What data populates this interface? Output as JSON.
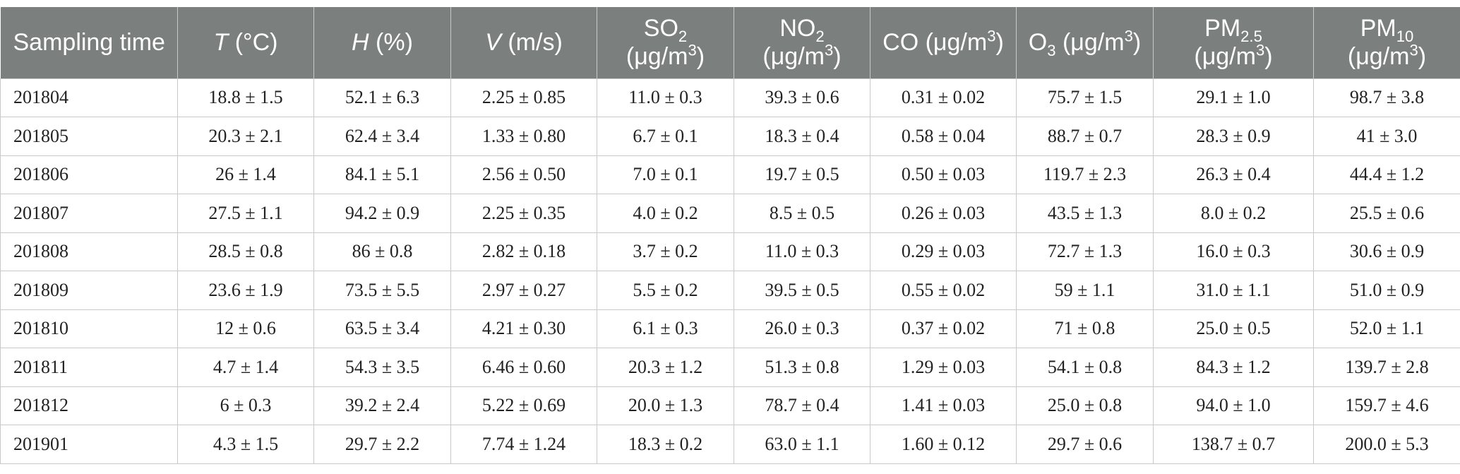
{
  "table": {
    "header": [
      [
        {
          "text": "Sampling time"
        }
      ],
      [
        {
          "i": "T"
        },
        {
          "text": " (°C)"
        }
      ],
      [
        {
          "i": "H"
        },
        {
          "text": " (%)"
        }
      ],
      [
        {
          "i": "V"
        },
        {
          "text": " (m/s)"
        }
      ],
      [
        {
          "text": "SO"
        },
        {
          "sub": "2"
        },
        {
          "text": " (μg/m"
        },
        {
          "sup": "3"
        },
        {
          "text": ")"
        }
      ],
      [
        {
          "text": "NO"
        },
        {
          "sub": "2"
        },
        {
          "text": " (μg/m"
        },
        {
          "sup": "3"
        },
        {
          "text": ")"
        }
      ],
      [
        {
          "text": "CO (μg/m"
        },
        {
          "sup": "3"
        },
        {
          "text": ")"
        }
      ],
      [
        {
          "text": "O"
        },
        {
          "sub": "3"
        },
        {
          "text": " (μg/m"
        },
        {
          "sup": "3"
        },
        {
          "text": ")"
        }
      ],
      [
        {
          "text": "PM"
        },
        {
          "sub": "2.5"
        },
        {
          "text": " (μg/m"
        },
        {
          "sup": "3"
        },
        {
          "text": ")"
        }
      ],
      [
        {
          "text": "PM"
        },
        {
          "sub": "10"
        },
        {
          "text": " (μg/m"
        },
        {
          "sup": "3"
        },
        {
          "text": ")"
        }
      ]
    ],
    "rows": [
      [
        "201804",
        "18.8 ± 1.5",
        "52.1 ± 6.3",
        "2.25 ± 0.85",
        "11.0 ± 0.3",
        "39.3 ± 0.6",
        "0.31 ± 0.02",
        "75.7 ± 1.5",
        "29.1 ± 1.0",
        "98.7 ± 3.8"
      ],
      [
        "201805",
        "20.3 ± 2.1",
        "62.4 ± 3.4",
        "1.33 ± 0.80",
        "6.7 ± 0.1",
        "18.3 ± 0.4",
        "0.58 ± 0.04",
        "88.7 ± 0.7",
        "28.3 ± 0.9",
        "41 ± 3.0"
      ],
      [
        "201806",
        "26 ± 1.4",
        "84.1 ± 5.1",
        "2.56 ± 0.50",
        "7.0 ± 0.1",
        "19.7 ± 0.5",
        "0.50 ± 0.03",
        "119.7 ± 2.3",
        "26.3 ± 0.4",
        "44.4 ± 1.2"
      ],
      [
        "201807",
        "27.5 ± 1.1",
        "94.2 ± 0.9",
        "2.25 ± 0.35",
        "4.0 ± 0.2",
        "8.5 ± 0.5",
        "0.26 ± 0.03",
        "43.5 ± 1.3",
        "8.0 ± 0.2",
        "25.5 ± 0.6"
      ],
      [
        "201808",
        "28.5 ± 0.8",
        "86 ± 0.8",
        "2.82 ± 0.18",
        "3.7 ± 0.2",
        "11.0 ± 0.3",
        "0.29 ± 0.03",
        "72.7 ± 1.3",
        "16.0 ± 0.3",
        "30.6 ± 0.9"
      ],
      [
        "201809",
        "23.6 ± 1.9",
        "73.5 ± 5.5",
        "2.97 ± 0.27",
        "5.5 ± 0.2",
        "39.5 ± 0.5",
        "0.55 ± 0.02",
        "59 ± 1.1",
        "31.0 ± 1.1",
        "51.0 ± 0.9"
      ],
      [
        "201810",
        "12 ± 0.6",
        "63.5 ± 3.4",
        "4.21 ± 0.30",
        "6.1 ± 0.3",
        "26.0 ± 0.3",
        "0.37 ± 0.02",
        "71 ± 0.8",
        "25.0 ± 0.5",
        "52.0 ± 1.1"
      ],
      [
        "201811",
        "4.7 ± 1.4",
        "54.3 ± 3.5",
        "6.46 ± 0.60",
        "20.3 ± 1.2",
        "51.3 ± 0.8",
        "1.29 ± 0.03",
        "54.1 ± 0.8",
        "84.3 ± 1.2",
        "139.7 ± 2.8"
      ],
      [
        "201812",
        "6 ± 0.3",
        "39.2 ± 2.4",
        "5.22 ± 0.69",
        "20.0 ± 1.3",
        "78.7 ± 0.4",
        "1.41 ± 0.03",
        "25.0 ± 0.8",
        "94.0 ± 1.0",
        "159.7 ± 4.6"
      ],
      [
        "201901",
        "4.3 ± 1.5",
        "29.7 ± 2.2",
        "7.74 ± 1.24",
        "18.3 ± 0.2",
        "63.0 ± 1.1",
        "1.60 ± 0.12",
        "29.7 ± 0.6",
        "138.7 ± 0.7",
        "200.0 ± 5.3"
      ]
    ]
  }
}
